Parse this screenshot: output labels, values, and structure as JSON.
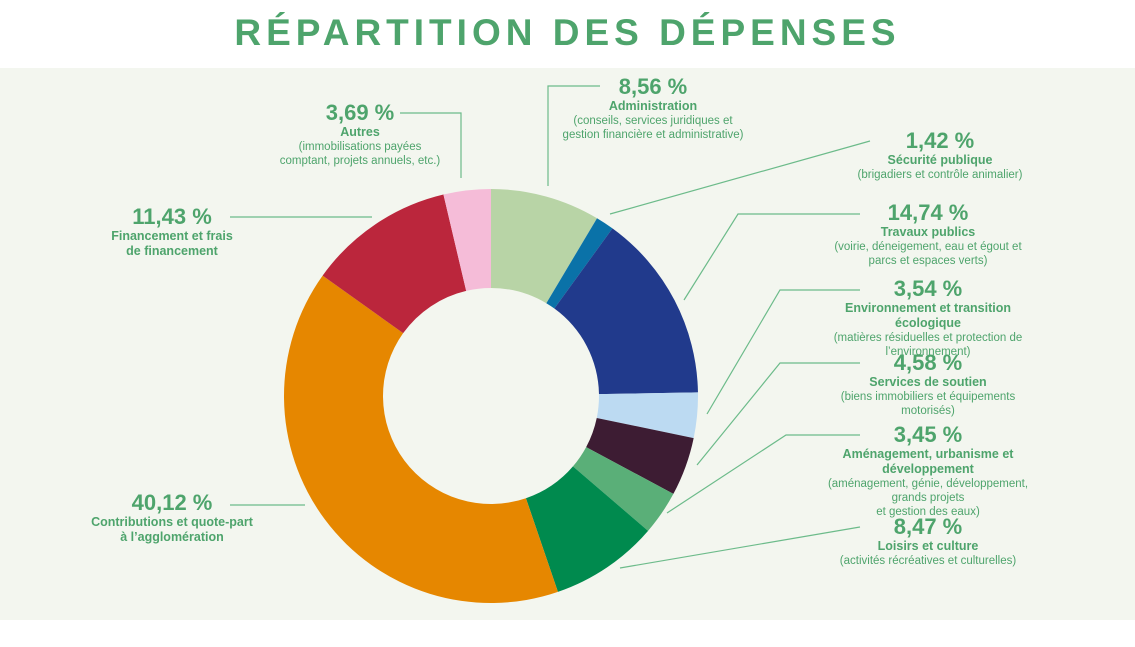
{
  "title": "RÉPARTITION DES DÉPENSES",
  "chart_data": {
    "type": "pie",
    "donut": true,
    "title": "RÉPARTITION DES DÉPENSES",
    "slices": [
      {
        "label": "8,56 %",
        "value": 8.56,
        "name": "Administration",
        "desc": "(conseils, services juridiques et\ngestion financière et administrative)",
        "color": "#b8d4a6"
      },
      {
        "label": "1,42 %",
        "value": 1.42,
        "name": "Sécurité publique",
        "desc": "(brigadiers et contrôle animalier)",
        "color": "#0a72a8"
      },
      {
        "label": "14,74 %",
        "value": 14.74,
        "name": "Travaux publics",
        "desc": "(voirie, déneigement, eau et égout et parcs et espaces verts)",
        "color": "#213a8c"
      },
      {
        "label": "3,54 %",
        "value": 3.54,
        "name": "Environnement et transition écologique",
        "desc": "(matières résiduelles et protection de l’environnement)",
        "color": "#bcdaf2"
      },
      {
        "label": "4,58 %",
        "value": 4.58,
        "name": "Services de soutien",
        "desc": "(biens immobiliers et équipements motorisés)",
        "color": "#3d1c33"
      },
      {
        "label": "3,45 %",
        "value": 3.45,
        "name": "Aménagement, urbanisme et développement",
        "desc": "(aménagement, génie, développement, grands projets\net gestion des eaux)",
        "color": "#5aaf78"
      },
      {
        "label": "8,47 %",
        "value": 8.47,
        "name": "Loisirs et culture",
        "desc": "(activités récréatives et culturelles)",
        "color": "#008a4e"
      },
      {
        "label": "40,12 %",
        "value": 40.12,
        "name": "Contributions et quote-part\nà l’agglomération",
        "desc": "",
        "color": "#e68700"
      },
      {
        "label": "11,43 %",
        "value": 11.43,
        "name": "Financement et frais\nde financement",
        "desc": "",
        "color": "#bb263c"
      },
      {
        "label": "3,69 %",
        "value": 3.69,
        "name": "Autres",
        "desc": "(immobilisations payées\ncomptant, projets annuels, etc.)",
        "color": "#f5bcd8"
      }
    ]
  }
}
